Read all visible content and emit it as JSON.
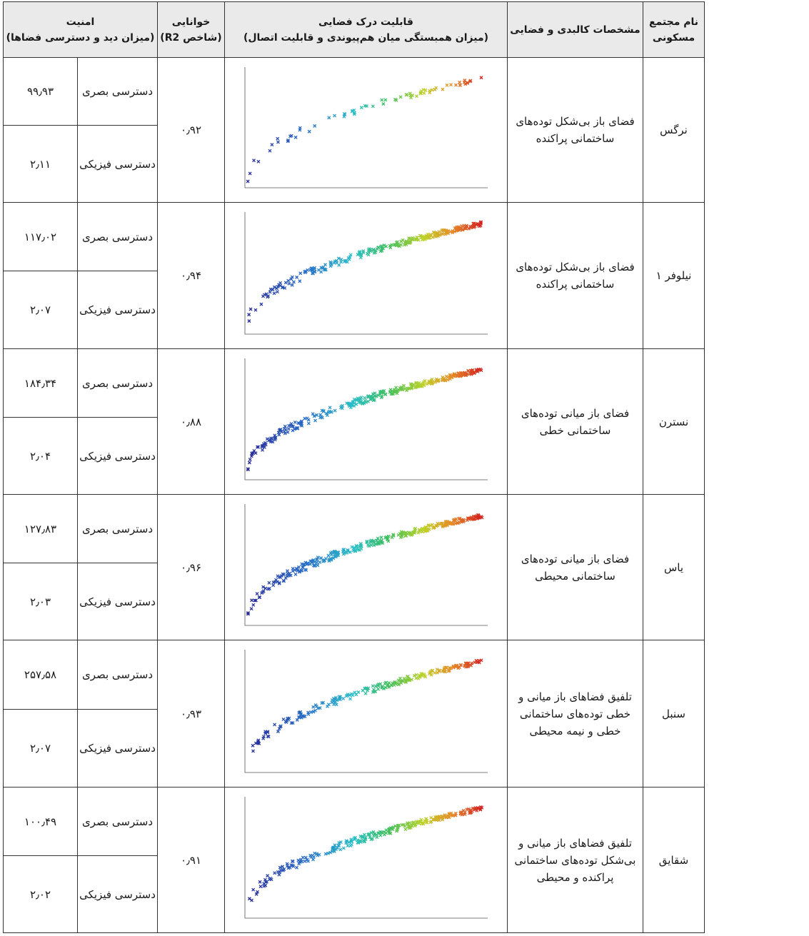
{
  "header": {
    "name": "نام مجتمع مسکونی",
    "features": "مشخصات کالبدی و فضایی",
    "perception_title": "قابلیت درک فضایی",
    "perception_sub": "(میزان همبستگی میان هم‌پیوندی و قابلیت اتصال)",
    "readability_title": "خوانایی",
    "readability_sub": "(شاخص R2)",
    "security_title": "امنیت",
    "security_sub": "(میزان دید و دسترسی فضاها)"
  },
  "labels": {
    "visual": "دسترسی بصری",
    "physical": "دسترسی فیزیکی"
  },
  "rows": [
    {
      "name": "نرگس",
      "desc": "فضای باز بی‌شکل توده‌های ساختمانی پراکنده",
      "r2": "۰٫۹۲",
      "visual": "۹۹٫۹۳",
      "physical": "۲٫۱۱"
    },
    {
      "name": "نیلوفر ۱",
      "desc": "فضای باز بی‌شکل توده‌های ساختمانی پراکنده",
      "r2": "۰٫۹۴",
      "visual": "۱۱۷٫۰۲",
      "physical": "۲٫۰۷"
    },
    {
      "name": "نسترن",
      "desc": "فضای باز میانی توده‌های ساختمانی خطی",
      "r2": "۰٫۸۸",
      "visual": "۱۸۴٫۳۴",
      "physical": "۲٫۰۴"
    },
    {
      "name": "یاس",
      "desc": "فضای باز میانی توده‌های ساختمانی محیطی",
      "r2": "۰٫۹۶",
      "visual": "۱۲۷٫۸۳",
      "physical": "۲٫۰۳"
    },
    {
      "name": "سنبل",
      "desc": "تلفیق فضاهای باز میانی و خطی توده‌های ساختمانی خطی و نیمه محیطی",
      "r2": "۰٫۹۳",
      "visual": "۲۵۷٫۵۸",
      "physical": "۲٫۰۷"
    },
    {
      "name": "شقایق",
      "desc": "تلفیق فضاهای باز میانی و بی‌شکل توده‌های ساختمانی پراکنده و محیطی",
      "r2": "۰٫۹۱",
      "visual": "۱۰۰٫۴۹",
      "physical": "۲٫۰۲"
    }
  ],
  "chart_data": [
    {
      "type": "scatter",
      "density": 70
    },
    {
      "type": "scatter",
      "density": 260
    },
    {
      "type": "scatter",
      "density": 300
    },
    {
      "type": "scatter",
      "density": 320
    },
    {
      "type": "scatter",
      "density": 220
    },
    {
      "type": "scatter",
      "density": 260
    }
  ]
}
